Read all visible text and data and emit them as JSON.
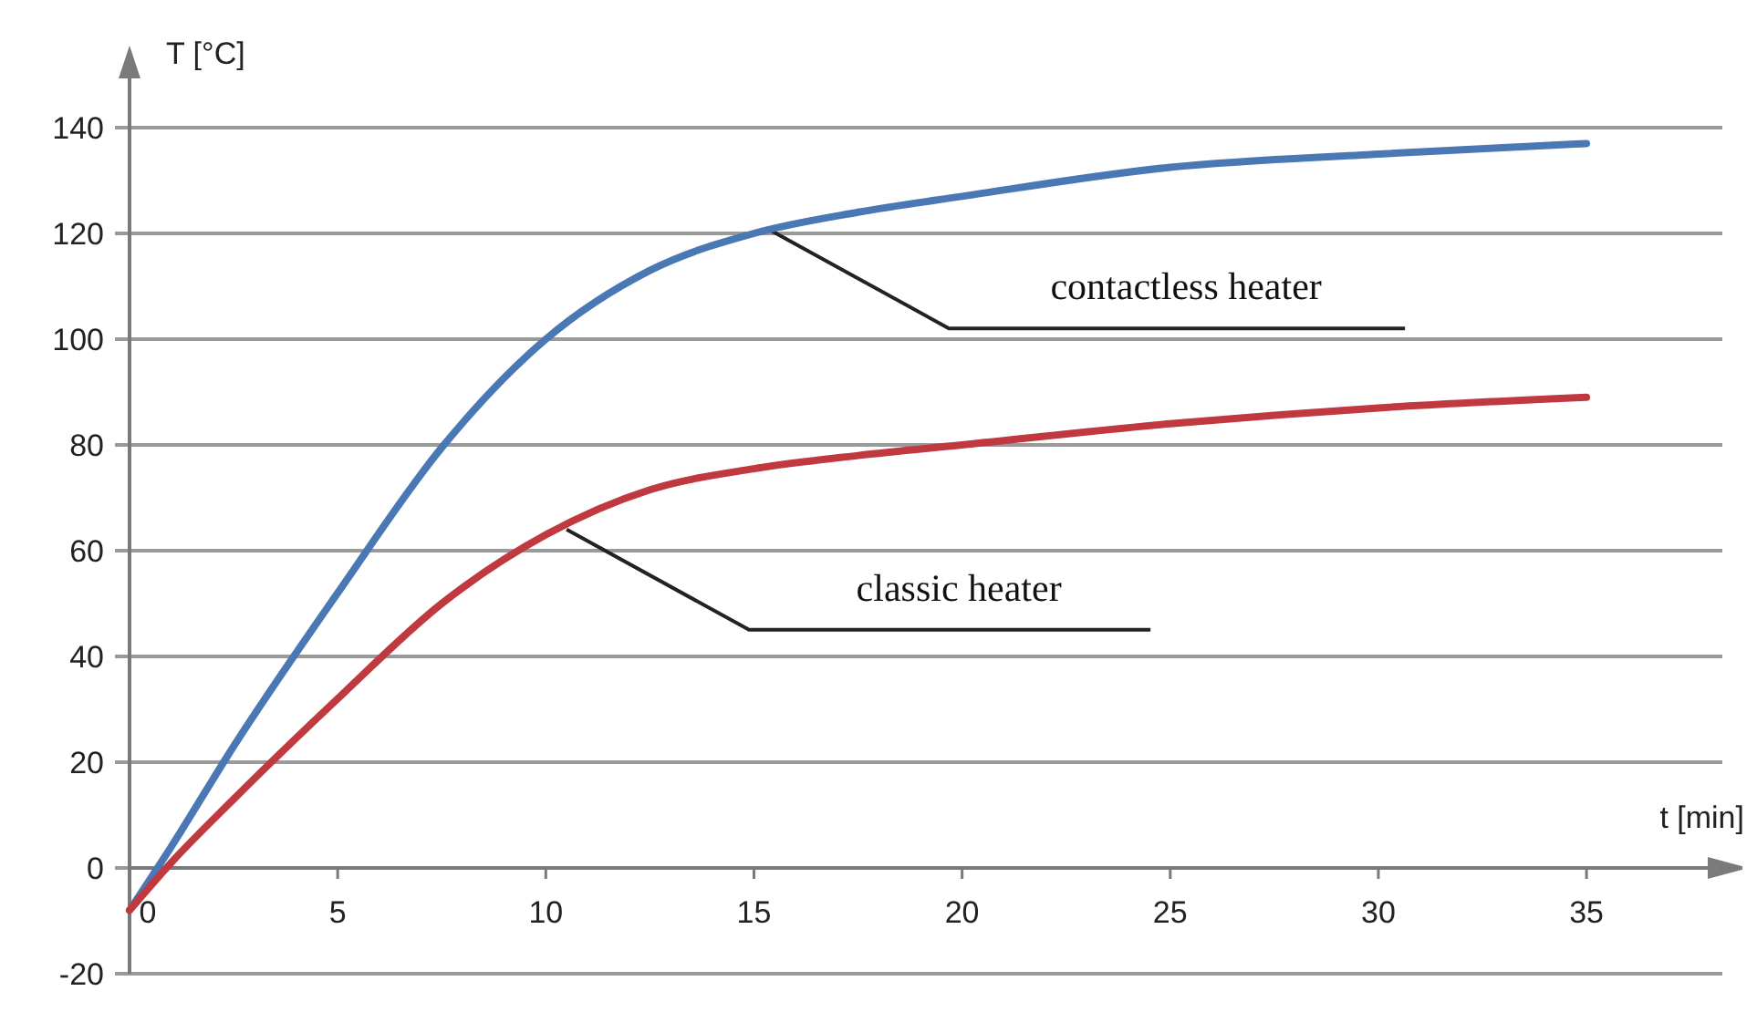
{
  "chart_data": {
    "type": "line",
    "xlabel": "t [min]",
    "ylabel": "T [°C]",
    "xlim": [
      0,
      38
    ],
    "xticks": [
      0,
      5,
      10,
      15,
      20,
      25,
      30,
      35
    ],
    "ylim": [
      -20,
      150
    ],
    "yticks": [
      -20,
      0,
      20,
      40,
      60,
      80,
      100,
      120,
      140
    ],
    "grid": "y",
    "line_style": "solid",
    "marker": "none",
    "x": [
      0,
      1,
      2.5,
      5,
      7.5,
      10,
      12.5,
      15,
      17.5,
      20,
      25,
      30,
      35
    ],
    "series": [
      {
        "color": "#4a78b5",
        "values": [
          -8,
          4,
          23,
          52,
          79.5,
          100,
          113,
          120,
          124,
          127,
          132.5,
          135,
          137
        ]
      },
      {
        "color": "#c0393f",
        "values": [
          -8,
          1,
          13,
          32,
          50,
          63,
          71.5,
          75.5,
          78,
          80,
          84,
          87,
          89
        ]
      }
    ],
    "annotations": [
      {
        "text": "contactless heater",
        "x": 15.3,
        "y": 121
      },
      {
        "text": "classic heater",
        "x": 10.5,
        "y": 64
      }
    ]
  }
}
